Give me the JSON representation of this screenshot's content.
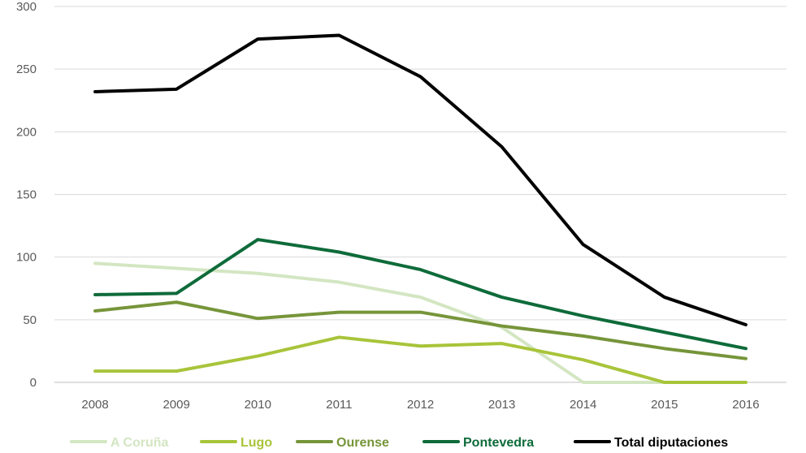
{
  "chart_data": {
    "type": "line",
    "title": "",
    "xlabel": "",
    "ylabel": "",
    "categories": [
      "2008",
      "2009",
      "2010",
      "2011",
      "2012",
      "2013",
      "2014",
      "2015",
      "2016"
    ],
    "ylim": [
      0,
      300
    ],
    "yticks": [
      "0",
      "50",
      "100",
      "150",
      "200",
      "250",
      "300"
    ],
    "grid": true,
    "legend_position": "bottom",
    "series": [
      {
        "name": "A Coruña",
        "color": "#D3E6C2",
        "values": [
          95,
          91,
          87,
          80,
          68,
          44,
          0,
          0,
          0
        ]
      },
      {
        "name": "Lugo",
        "color": "#A8C43A",
        "values": [
          9,
          9,
          21,
          36,
          29,
          31,
          18,
          0,
          0
        ]
      },
      {
        "name": "Ourense",
        "color": "#76953A",
        "values": [
          57,
          64,
          51,
          56,
          56,
          45,
          37,
          27,
          19
        ]
      },
      {
        "name": "Pontevedra",
        "color": "#0E6B3A",
        "values": [
          70,
          71,
          114,
          104,
          90,
          68,
          53,
          40,
          27
        ]
      },
      {
        "name": "Total diputaciones",
        "color": "#000000",
        "values": [
          232,
          234,
          274,
          277,
          244,
          188,
          110,
          68,
          46
        ]
      }
    ]
  }
}
